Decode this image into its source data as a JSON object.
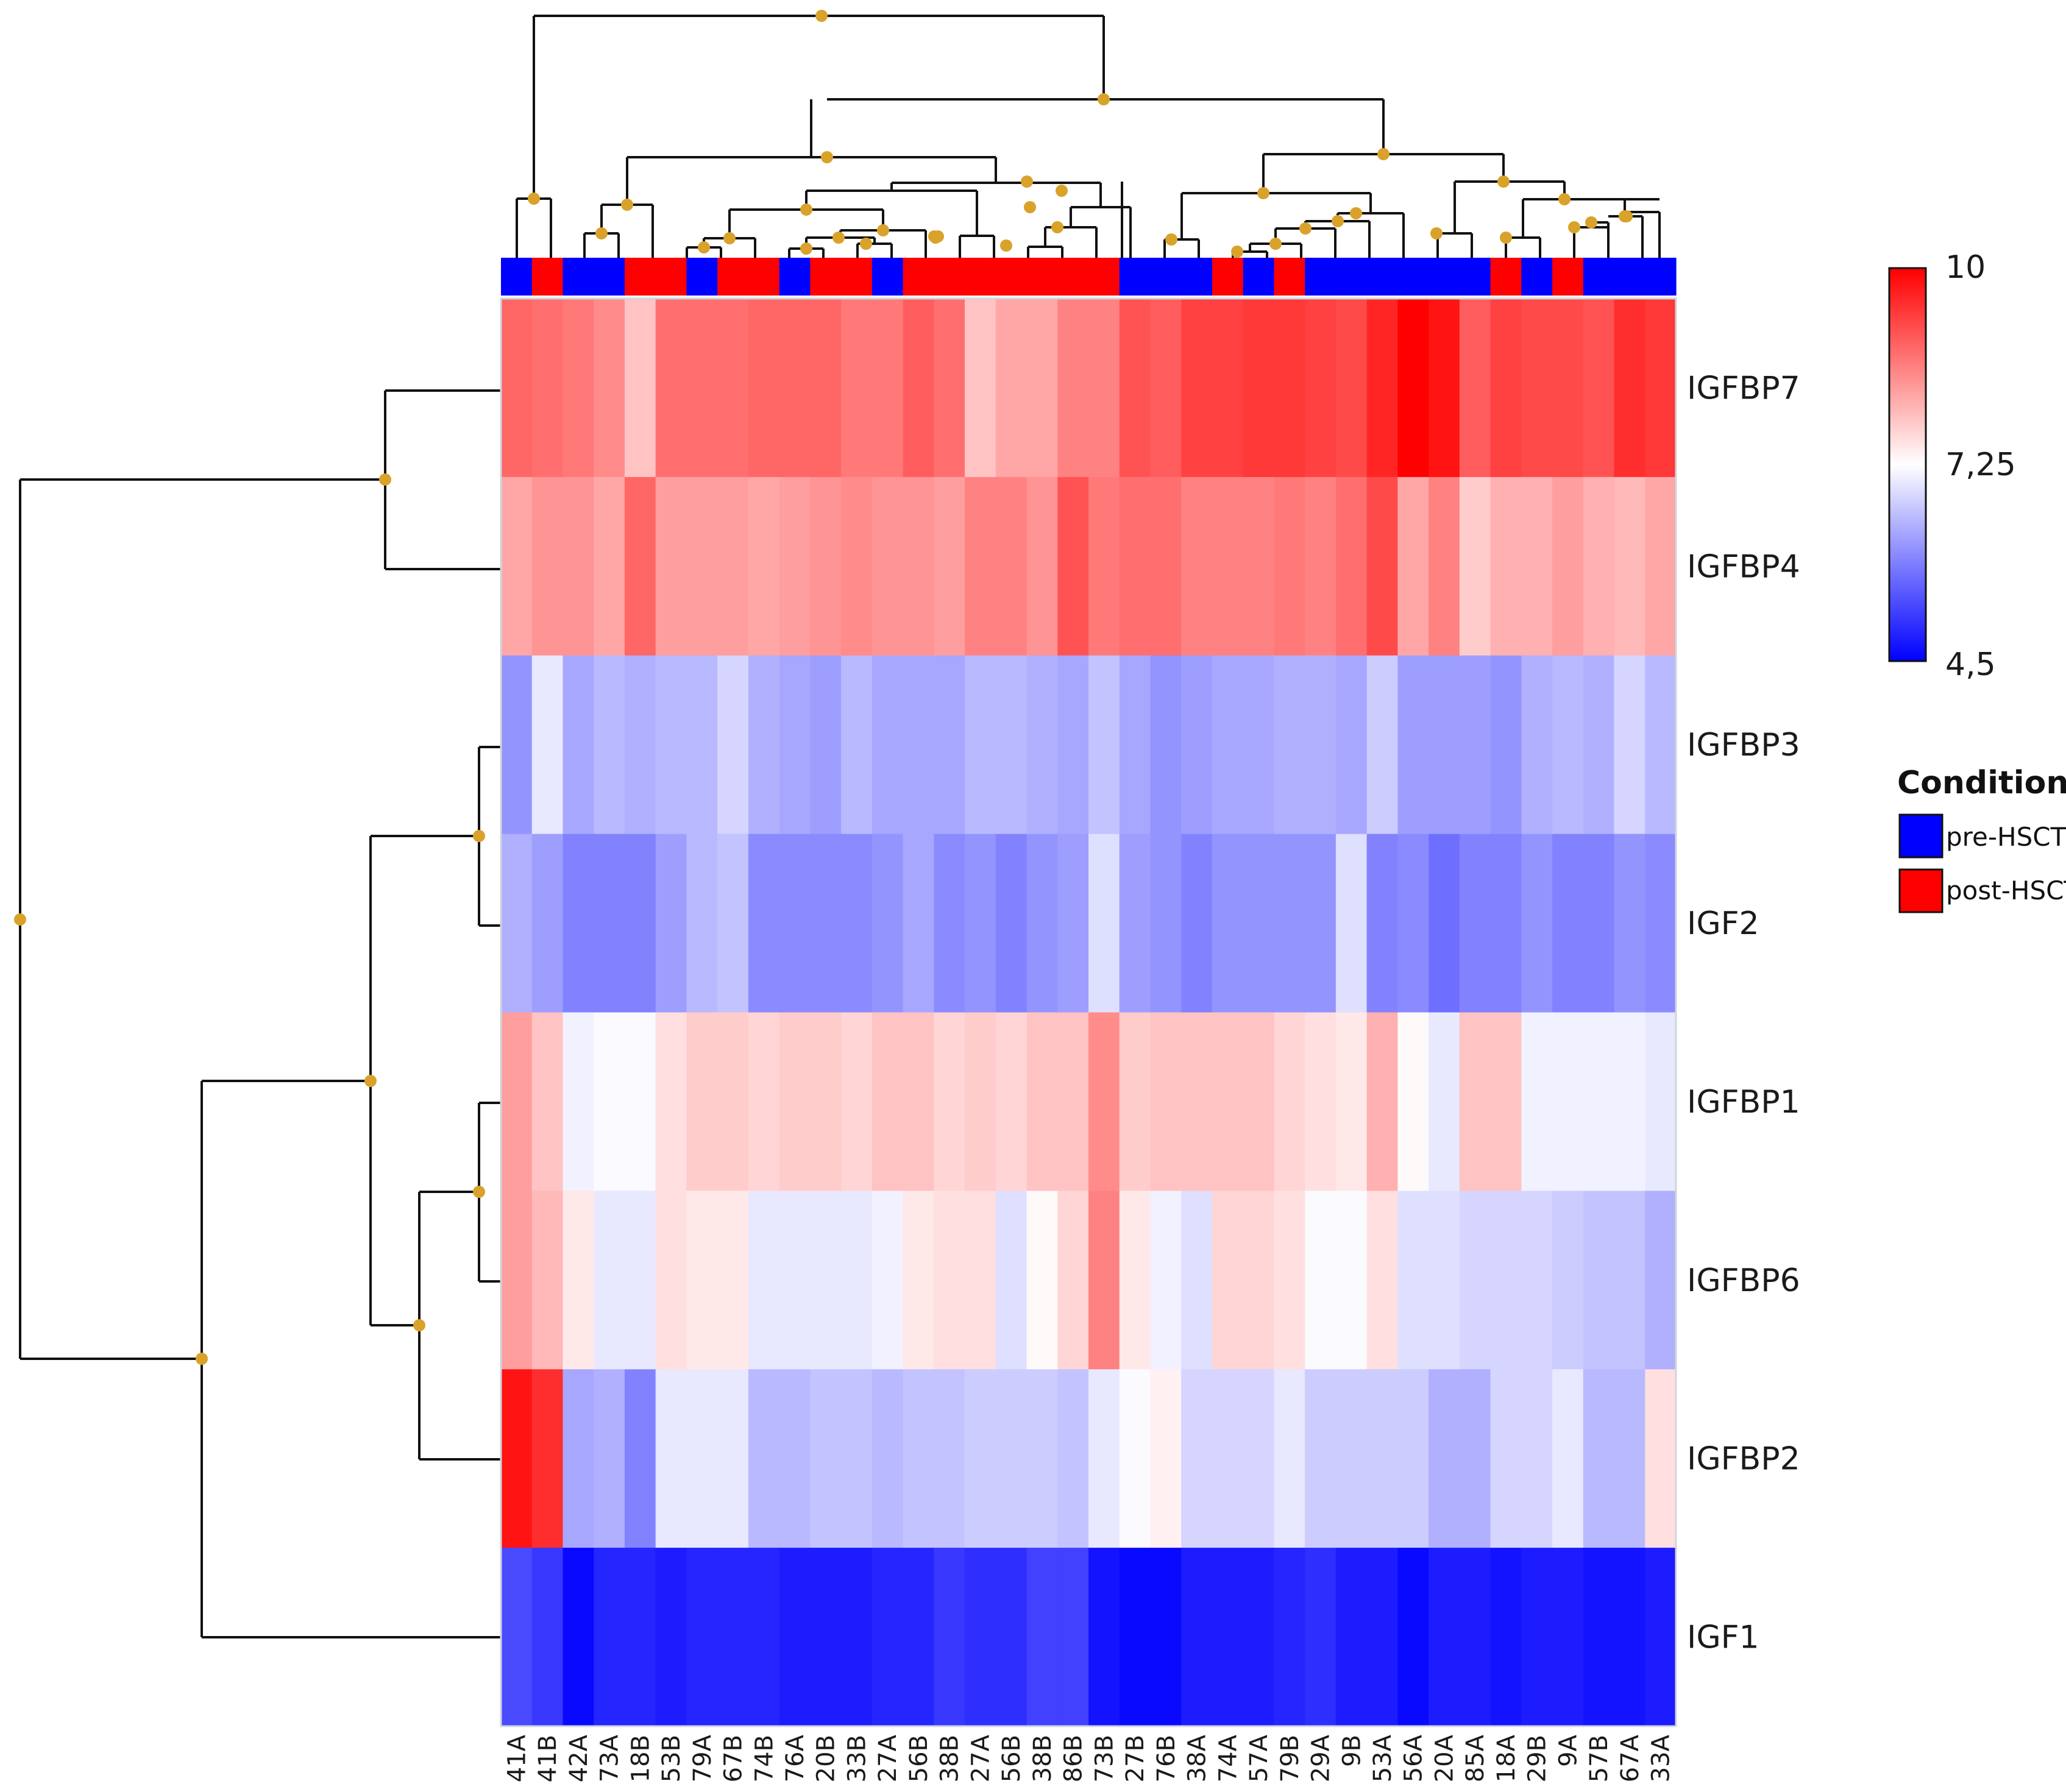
{
  "chart_data": {
    "type": "heatmap",
    "title": "",
    "rows": [
      "IGFBP7",
      "IGFBP4",
      "IGFBP3",
      "IGF2",
      "IGFBP1",
      "IGFBP6",
      "IGFBP2",
      "IGF1"
    ],
    "columns": [
      "41A",
      "41B",
      "42A",
      "73A",
      "18B",
      "53B",
      "79A",
      "67B",
      "74B",
      "76A",
      "20B",
      "33B",
      "27A",
      "56B",
      "38B",
      "27A",
      "56B",
      "38B",
      "86B",
      "73B",
      "27B",
      "76B",
      "38A",
      "74A",
      "57A",
      "79B",
      "29A",
      "9B",
      "53A",
      "56A",
      "20A",
      "85A",
      "18A",
      "29B",
      "9A",
      "57B",
      "67A",
      "33A"
    ],
    "conditions": [
      "pre-HSCT",
      "post-HSCT",
      "pre-HSCT",
      "pre-HSCT",
      "post-HSCT",
      "post-HSCT",
      "pre-HSCT",
      "post-HSCT",
      "post-HSCT",
      "pre-HSCT",
      "post-HSCT",
      "post-HSCT",
      "pre-HSCT",
      "post-HSCT",
      "post-HSCT",
      "post-HSCT",
      "post-HSCT",
      "post-HSCT",
      "post-HSCT",
      "post-HSCT",
      "pre-HSCT",
      "pre-HSCT",
      "pre-HSCT",
      "post-HSCT",
      "pre-HSCT",
      "post-HSCT",
      "pre-HSCT",
      "pre-HSCT",
      "pre-HSCT",
      "pre-HSCT",
      "pre-HSCT",
      "pre-HSCT",
      "post-HSCT",
      "pre-HSCT",
      "post-HSCT",
      "pre-HSCT",
      "pre-HSCT",
      "pre-HSCT"
    ],
    "values": [
      [
        8.9,
        8.8,
        8.7,
        8.5,
        7.9,
        8.8,
        8.8,
        8.8,
        8.9,
        8.9,
        8.9,
        8.7,
        8.7,
        9.0,
        8.8,
        7.9,
        8.2,
        8.2,
        8.6,
        8.6,
        9.1,
        9.0,
        9.3,
        9.3,
        9.4,
        9.4,
        9.3,
        9.2,
        9.6,
        10.0,
        9.8,
        9.0,
        9.3,
        9.2,
        9.2,
        9.1,
        9.5,
        9.4
      ],
      [
        8.2,
        8.4,
        8.4,
        8.2,
        8.9,
        8.3,
        8.3,
        8.3,
        8.2,
        8.3,
        8.4,
        8.5,
        8.4,
        8.4,
        8.3,
        8.6,
        8.6,
        8.4,
        9.1,
        8.7,
        8.8,
        8.8,
        8.6,
        8.6,
        8.6,
        8.7,
        8.6,
        8.8,
        9.2,
        8.2,
        8.6,
        7.8,
        8.1,
        8.1,
        8.3,
        8.1,
        8.0,
        8.2
      ],
      [
        6.1,
        7.0,
        6.3,
        6.5,
        6.4,
        6.5,
        6.5,
        6.8,
        6.4,
        6.3,
        6.2,
        6.5,
        6.3,
        6.3,
        6.3,
        6.5,
        6.5,
        6.4,
        6.3,
        6.6,
        6.3,
        6.1,
        6.2,
        6.3,
        6.3,
        6.4,
        6.4,
        6.3,
        6.7,
        6.2,
        6.2,
        6.2,
        6.1,
        6.4,
        6.5,
        6.4,
        6.8,
        6.5
      ],
      [
        6.4,
        6.2,
        5.9,
        5.9,
        5.9,
        6.2,
        6.5,
        6.6,
        6.0,
        6.0,
        6.0,
        6.0,
        6.1,
        6.3,
        6.0,
        6.1,
        5.9,
        6.1,
        6.2,
        6.9,
        6.2,
        6.1,
        5.9,
        6.1,
        6.1,
        6.1,
        6.1,
        6.9,
        5.9,
        6.0,
        5.7,
        5.9,
        5.9,
        6.1,
        5.9,
        5.9,
        6.1,
        6.0
      ],
      [
        8.3,
        7.9,
        7.1,
        7.2,
        7.2,
        7.6,
        7.8,
        7.8,
        7.7,
        7.8,
        7.8,
        7.7,
        7.9,
        7.9,
        7.7,
        7.8,
        7.7,
        7.9,
        7.9,
        8.5,
        7.8,
        7.9,
        7.9,
        7.9,
        7.9,
        7.7,
        7.6,
        7.5,
        8.1,
        7.3,
        7.0,
        7.9,
        7.9,
        7.1,
        7.1,
        7.1,
        7.1,
        7.0
      ],
      [
        8.3,
        8.0,
        7.5,
        7.0,
        7.0,
        7.6,
        7.5,
        7.5,
        7.0,
        7.0,
        7.0,
        7.0,
        7.1,
        7.5,
        7.6,
        7.6,
        6.9,
        7.3,
        7.7,
        8.6,
        7.5,
        7.1,
        6.9,
        7.7,
        7.7,
        7.6,
        7.2,
        7.2,
        7.6,
        6.9,
        6.9,
        6.8,
        6.8,
        6.8,
        6.7,
        6.6,
        6.6,
        6.4
      ],
      [
        9.8,
        9.5,
        6.3,
        6.4,
        5.9,
        7.0,
        7.0,
        7.0,
        6.5,
        6.5,
        6.6,
        6.6,
        6.5,
        6.6,
        6.6,
        6.7,
        6.7,
        6.7,
        6.6,
        7.0,
        7.2,
        7.4,
        6.8,
        6.8,
        6.8,
        7.0,
        6.7,
        6.7,
        6.7,
        6.7,
        6.4,
        6.4,
        6.8,
        6.8,
        7.0,
        6.5,
        6.5,
        7.6
      ],
      [
        5.3,
        5.1,
        4.6,
        4.9,
        4.9,
        4.8,
        4.9,
        4.9,
        4.9,
        4.8,
        4.8,
        4.8,
        4.9,
        4.9,
        5.1,
        5.0,
        5.0,
        5.2,
        5.2,
        4.7,
        4.6,
        4.6,
        4.8,
        4.8,
        4.8,
        4.9,
        5.0,
        4.8,
        4.8,
        4.6,
        4.8,
        4.8,
        4.7,
        4.8,
        4.8,
        4.7,
        4.7,
        4.8
      ]
    ],
    "color_scale": {
      "min": 4.5,
      "mid": 7.25,
      "max": 10,
      "min_color": "#0000ff",
      "mid_color": "#ffffff",
      "max_color": "#ff0000"
    },
    "colorbar_labels": [
      "10",
      "7,25",
      "4,5"
    ],
    "legend": {
      "title": "Condition",
      "items": [
        {
          "label": "pre-HSCT",
          "color": "#0000ff"
        },
        {
          "label": "post-HSCT",
          "color": "#ff0000"
        }
      ]
    },
    "row_dendrogram": "((IGFBP7,IGFBP4),((IGFBP3,IGF2),((IGFBP1,IGFBP6),IGFBP2)),IGF1)",
    "column_dendrogram": "present"
  }
}
